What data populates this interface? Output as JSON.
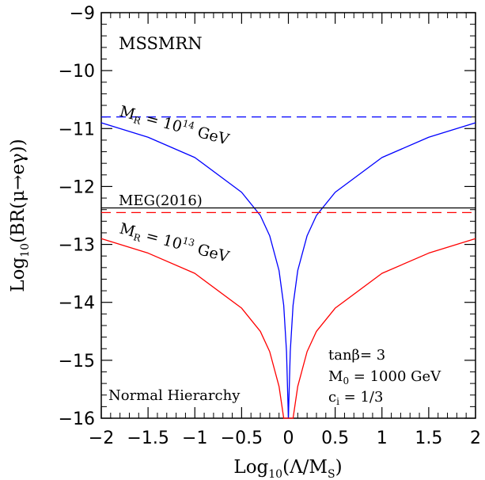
{
  "chart_data": {
    "type": "line",
    "xlabel": "Log10(Λ/MS)",
    "ylabel": "Log10(BR(μ→eγ))",
    "xlim": [
      -2,
      2
    ],
    "ylim": [
      -16,
      -9
    ],
    "x_ticks": [
      -2,
      -1.5,
      -1,
      -0.5,
      0,
      0.5,
      1,
      1.5,
      2
    ],
    "y_ticks": [
      -16,
      -15,
      -14,
      -13,
      -12,
      -11,
      -10,
      -9
    ],
    "x_tick_labels": [
      "−2",
      "−1.5",
      "−1",
      "−0.5",
      "0",
      "0.5",
      "1",
      "1.5",
      "2"
    ],
    "y_tick_labels": [
      "−16",
      "−15",
      "−14",
      "−13",
      "−12",
      "−11",
      "−10",
      "−9"
    ],
    "grid": false,
    "series": [
      {
        "color": "#0000ff",
        "style": "solid",
        "x": [
          -2,
          -1.5,
          -1,
          -0.5,
          -0.3,
          -0.2,
          -0.1,
          -0.05,
          -0.02,
          0,
          0.02,
          0.05,
          0.1,
          0.2,
          0.3,
          0.5,
          1,
          1.5,
          2
        ],
        "y": [
          -10.9,
          -11.15,
          -11.5,
          -12.1,
          -12.5,
          -12.85,
          -13.45,
          -14.05,
          -14.85,
          -16,
          -14.85,
          -14.05,
          -13.45,
          -12.85,
          -12.5,
          -12.1,
          -11.5,
          -11.15,
          -10.9
        ]
      },
      {
        "color": "#ff0000",
        "style": "solid",
        "x": [
          -2,
          -1.5,
          -1,
          -0.5,
          -0.3,
          -0.2,
          -0.1,
          -0.05,
          0.05,
          0.1,
          0.2,
          0.3,
          0.5,
          1,
          1.5,
          2
        ],
        "y": [
          -12.9,
          -13.15,
          -13.5,
          -14.1,
          -14.5,
          -14.85,
          -15.45,
          -16,
          -16,
          -15.45,
          -14.85,
          -14.5,
          -14.1,
          -13.5,
          -13.15,
          -12.9
        ]
      },
      {
        "color": "#0000ff",
        "style": "dashed",
        "x": [
          -2,
          2
        ],
        "y": [
          -10.8,
          -10.8
        ]
      },
      {
        "color": "#ff0000",
        "style": "dashed",
        "x": [
          -2,
          2
        ],
        "y": [
          -12.45,
          -12.45
        ]
      },
      {
        "color": "#000000",
        "style": "solid",
        "x": [
          -2,
          2
        ],
        "y": [
          -12.37,
          -12.37
        ]
      }
    ]
  },
  "annotations": {
    "model": "MSSMRN",
    "meg": "MEG(2016)",
    "mr14": {
      "prefix": "M",
      "sub": "R",
      "eq": " = 10",
      "exp": "14",
      "unit": " GeV"
    },
    "mr13": {
      "prefix": "M",
      "sub": "R",
      "eq": " = 10",
      "exp": "13",
      "unit": " GeV"
    },
    "hierarchy": "Normal Hierarchy",
    "tanbeta": "tanβ= 3",
    "m0": {
      "prefix": "M",
      "sub": "0",
      "rest": " = 1000 GeV"
    },
    "ci": {
      "prefix": "c",
      "sub": "i",
      "rest": " = 1/3"
    }
  },
  "axis_text": {
    "x": {
      "pre": "Log",
      "sub": "10",
      "post": "(Λ/M",
      "sub2": "S",
      "end": ")"
    },
    "y": {
      "pre": "Log",
      "sub": "10",
      "post": "(BR(μ→eγ))"
    }
  }
}
